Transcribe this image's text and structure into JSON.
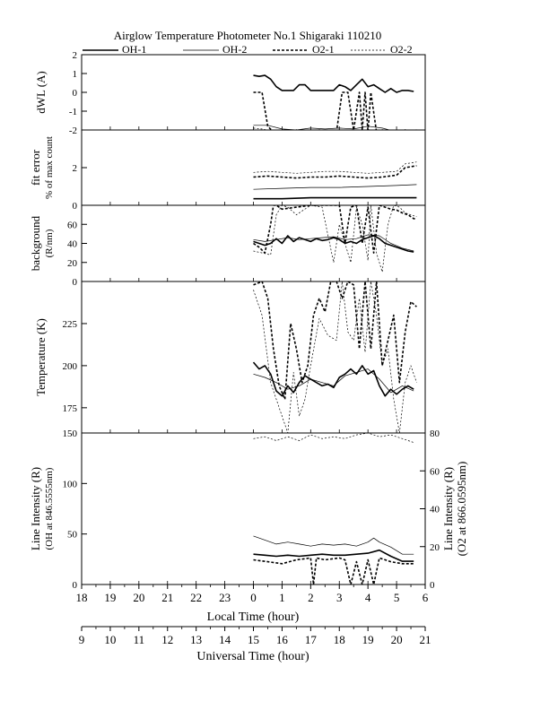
{
  "title": "Airglow Temperature Photometer No.1   Shigaraki   110210",
  "legend": [
    {
      "name": "OH-1",
      "style": "thick-solid"
    },
    {
      "name": "OH-2",
      "style": "thin-solid"
    },
    {
      "name": "O2-1",
      "style": "thick-dash"
    },
    {
      "name": "O2-2",
      "style": "thin-dash"
    }
  ],
  "x_axes": {
    "local": {
      "label": "Local Time (hour)",
      "ticks": [
        "18",
        "19",
        "20",
        "21",
        "22",
        "23",
        "0",
        "1",
        "2",
        "3",
        "4",
        "5",
        "6"
      ]
    },
    "universal": {
      "label": "Universal Time (hour)",
      "ticks": [
        "9",
        "10",
        "11",
        "12",
        "13",
        "14",
        "15",
        "16",
        "17",
        "18",
        "19",
        "20",
        "21"
      ]
    }
  },
  "chart_data": [
    {
      "type": "line",
      "id": "dwl",
      "ylabel": [
        "dWL (A)"
      ],
      "ylim": [
        -2,
        2
      ],
      "yticks": [
        -2,
        -1,
        0,
        1,
        2
      ],
      "xlim": [
        18,
        30
      ],
      "series": [
        {
          "name": "OH-1",
          "x": [
            24.0,
            24.2,
            24.4,
            24.6,
            24.8,
            25.0,
            25.2,
            25.4,
            25.6,
            25.8,
            26.0,
            26.2,
            26.4,
            26.6,
            26.8,
            27.0,
            27.2,
            27.4,
            27.6,
            27.8,
            28.0,
            28.2,
            28.4,
            28.6,
            28.8,
            29.0,
            29.2,
            29.4,
            29.6
          ],
          "y": [
            0.9,
            0.85,
            0.9,
            0.7,
            0.3,
            0.1,
            0.1,
            0.1,
            0.4,
            0.4,
            0.1,
            0.1,
            0.1,
            0.1,
            0.1,
            0.4,
            0.3,
            0.1,
            0.4,
            0.7,
            0.3,
            0.4,
            0.2,
            0.0,
            0.2,
            0.0,
            0.1,
            0.1,
            0.05
          ]
        },
        {
          "name": "OH-2",
          "x": [
            24.0,
            24.5,
            25.0,
            25.5,
            26.0,
            26.5,
            27.0,
            27.5,
            28.0,
            28.5,
            29.0,
            29.5,
            29.7
          ],
          "y": [
            -1.75,
            -1.75,
            -1.95,
            -2.0,
            -1.9,
            -1.95,
            -1.9,
            -1.95,
            -1.8,
            -1.9,
            -2.1,
            -2.0,
            -2.1
          ]
        },
        {
          "name": "O2-1",
          "x": [
            24.0,
            24.3,
            24.5,
            24.7,
            24.9,
            25.1,
            25.3,
            25.5,
            25.7,
            25.9,
            26.1,
            26.3,
            26.5,
            26.7,
            26.9,
            27.1,
            27.3,
            27.5,
            27.7,
            27.8,
            27.9,
            28.0,
            28.1,
            28.3,
            28.5,
            28.7,
            28.9,
            29.1,
            29.3,
            29.5,
            29.7
          ],
          "y": [
            0.0,
            0.0,
            -1.8,
            -2.1,
            -2.2,
            -2.0,
            -2.2,
            -2.0,
            -2.1,
            -2.0,
            -2.2,
            -2.0,
            -2.1,
            -2.0,
            -2.1,
            0.0,
            0.0,
            -2.0,
            0.0,
            -2.0,
            0.0,
            -2.1,
            0.0,
            -2.1,
            -2.0,
            -2.1,
            -2.0,
            -2.1,
            -2.0,
            -2.1,
            -2.0
          ]
        },
        {
          "name": "O2-2",
          "x": [
            24.0,
            24.3,
            24.6,
            24.9,
            25.2,
            25.5,
            25.8,
            26.1,
            26.4,
            26.7,
            27.0,
            27.3,
            27.6,
            27.9,
            28.2,
            28.5,
            28.8,
            29.1,
            29.4,
            29.7
          ],
          "y": [
            -1.9,
            -1.95,
            -2.05,
            -2.1,
            -2.0,
            -2.15,
            -2.05,
            -2.1,
            -2.0,
            -2.15,
            -2.05,
            -2.1,
            -2.0,
            -2.15,
            -2.05,
            -2.1,
            -2.0,
            -2.15,
            -2.1,
            -2.1
          ]
        }
      ]
    },
    {
      "type": "line",
      "id": "fit_error",
      "ylabel": [
        "fit error",
        "% of max count"
      ],
      "ylim": [
        0,
        4
      ],
      "yticks": [
        0,
        2
      ],
      "xlim": [
        18,
        30
      ],
      "series": [
        {
          "name": "OH-1",
          "x": [
            24.0,
            25.0,
            26.0,
            27.0,
            28.0,
            29.0,
            29.7
          ],
          "y": [
            0.35,
            0.35,
            0.4,
            0.4,
            0.4,
            0.4,
            0.4
          ]
        },
        {
          "name": "OH-2",
          "x": [
            24.0,
            25.0,
            26.0,
            27.0,
            28.0,
            29.0,
            29.7
          ],
          "y": [
            0.85,
            0.9,
            0.95,
            0.95,
            1.0,
            1.05,
            1.1
          ]
        },
        {
          "name": "O2-1",
          "x": [
            24.0,
            24.5,
            25.0,
            25.5,
            26.0,
            26.5,
            27.0,
            27.5,
            28.0,
            28.5,
            29.0,
            29.3,
            29.7
          ],
          "y": [
            1.5,
            1.55,
            1.5,
            1.45,
            1.5,
            1.5,
            1.55,
            1.5,
            1.45,
            1.5,
            1.6,
            2.0,
            2.1
          ]
        },
        {
          "name": "O2-2",
          "x": [
            24.0,
            24.5,
            25.0,
            25.5,
            26.0,
            26.5,
            27.0,
            27.5,
            28.0,
            28.5,
            29.0,
            29.3,
            29.7
          ],
          "y": [
            1.75,
            1.8,
            1.75,
            1.7,
            1.75,
            1.8,
            1.8,
            1.75,
            1.7,
            1.75,
            1.8,
            2.2,
            2.3
          ]
        }
      ]
    },
    {
      "type": "line",
      "id": "background",
      "ylabel": [
        "background",
        "(R/nm)"
      ],
      "ylim": [
        0,
        80
      ],
      "yticks": [
        0,
        20,
        40,
        60
      ],
      "xlim": [
        18,
        30
      ],
      "series": [
        {
          "name": "OH-1",
          "x": [
            24.0,
            24.2,
            24.4,
            24.6,
            24.8,
            25.0,
            25.2,
            25.4,
            25.6,
            25.8,
            26.0,
            26.2,
            26.4,
            26.6,
            26.8,
            27.0,
            27.2,
            27.4,
            27.6,
            27.8,
            28.0,
            28.2,
            28.4,
            28.6,
            28.8,
            29.0,
            29.2,
            29.4,
            29.6
          ],
          "y": [
            42,
            40,
            38,
            40,
            45,
            40,
            48,
            42,
            46,
            44,
            42,
            45,
            43,
            44,
            46,
            44,
            40,
            42,
            40,
            44,
            46,
            48,
            45,
            40,
            38,
            36,
            34,
            32,
            31
          ]
        },
        {
          "name": "OH-2",
          "x": [
            24.0,
            24.4,
            24.8,
            25.2,
            25.6,
            26.0,
            26.4,
            26.8,
            27.2,
            27.6,
            28.0,
            28.4,
            28.8,
            29.2,
            29.6
          ],
          "y": [
            44,
            42,
            44,
            46,
            44,
            45,
            46,
            47,
            44,
            45,
            49,
            48,
            40,
            35,
            32
          ]
        },
        {
          "name": "O2-1",
          "x": [
            24.0,
            24.2,
            24.4,
            24.6,
            24.7,
            24.8,
            25.0,
            25.5,
            26.0,
            26.5,
            27.0,
            27.2,
            27.4,
            27.6,
            27.8,
            28.0,
            28.2,
            28.4,
            28.6,
            28.8,
            29.0,
            29.2,
            29.4,
            29.6,
            29.7
          ],
          "y": [
            40,
            36,
            30,
            60,
            80,
            80,
            76,
            78,
            80,
            80,
            80,
            40,
            78,
            80,
            40,
            78,
            30,
            80,
            78,
            76,
            75,
            72,
            70,
            66,
            66
          ]
        },
        {
          "name": "O2-2",
          "x": [
            24.0,
            24.3,
            24.6,
            24.8,
            25.0,
            25.2,
            25.5,
            26.0,
            26.4,
            26.8,
            27.0,
            27.2,
            27.4,
            27.6,
            27.8,
            28.0,
            28.1,
            28.3,
            28.5,
            28.7,
            28.9,
            29.1,
            29.3,
            29.5,
            29.7
          ],
          "y": [
            32,
            30,
            28,
            70,
            80,
            78,
            70,
            80,
            78,
            20,
            60,
            40,
            20,
            78,
            60,
            22,
            80,
            30,
            10,
            60,
            80,
            78,
            72,
            70,
            68
          ]
        }
      ]
    },
    {
      "type": "line",
      "id": "temperature",
      "ylabel": [
        "Temperature (K)"
      ],
      "ylim": [
        160,
        250
      ],
      "yticks": [
        175,
        200,
        225
      ],
      "xlim": [
        18,
        30
      ],
      "series": [
        {
          "name": "OH-1",
          "x": [
            24.0,
            24.2,
            24.4,
            24.6,
            24.8,
            25.0,
            25.2,
            25.4,
            25.6,
            25.8,
            26.0,
            26.2,
            26.4,
            26.6,
            26.8,
            27.0,
            27.2,
            27.4,
            27.6,
            27.8,
            28.0,
            28.2,
            28.4,
            28.6,
            28.8,
            29.0,
            29.2,
            29.4,
            29.6
          ],
          "y": [
            202,
            198,
            200,
            195,
            185,
            182,
            188,
            184,
            190,
            194,
            192,
            190,
            188,
            189,
            187,
            193,
            195,
            198,
            195,
            200,
            195,
            197,
            188,
            182,
            186,
            183,
            186,
            188,
            186
          ]
        },
        {
          "name": "OH-2",
          "x": [
            24.0,
            24.4,
            24.8,
            25.2,
            25.6,
            26.0,
            26.4,
            26.8,
            27.2,
            27.6,
            28.0,
            28.4,
            28.8,
            29.2,
            29.6
          ],
          "y": [
            195,
            193,
            190,
            186,
            188,
            192,
            190,
            188,
            194,
            196,
            198,
            192,
            184,
            188,
            185
          ]
        },
        {
          "name": "O2-1",
          "x": [
            24.0,
            24.3,
            24.5,
            24.7,
            24.9,
            25.1,
            25.3,
            25.5,
            25.7,
            25.9,
            26.1,
            26.3,
            26.5,
            26.7,
            26.9,
            27.1,
            27.3,
            27.5,
            27.7,
            27.9,
            28.1,
            28.3,
            28.5,
            28.7,
            28.9,
            29.1,
            29.3,
            29.5,
            29.7
          ],
          "y": [
            248,
            250,
            240,
            210,
            188,
            180,
            225,
            210,
            190,
            200,
            230,
            240,
            232,
            250,
            250,
            240,
            250,
            248,
            210,
            250,
            210,
            250,
            200,
            215,
            230,
            190,
            220,
            238,
            235
          ]
        },
        {
          "name": "O2-2",
          "x": [
            24.0,
            24.3,
            24.6,
            24.9,
            25.2,
            25.4,
            25.6,
            25.8,
            26.0,
            26.3,
            26.6,
            26.9,
            27.1,
            27.3,
            27.5,
            27.7,
            27.9,
            28.1,
            28.3,
            28.5,
            28.7,
            28.9,
            29.1,
            29.3,
            29.5,
            29.7
          ],
          "y": [
            245,
            230,
            190,
            175,
            160,
            196,
            170,
            180,
            200,
            228,
            218,
            215,
            250,
            220,
            215,
            240,
            208,
            250,
            230,
            200,
            210,
            180,
            160,
            190,
            200,
            190
          ]
        }
      ]
    },
    {
      "type": "line",
      "id": "line_intensity",
      "ylabel": [
        "Line Intensity (R)",
        "(OH at 846.5555nm)"
      ],
      "ylim": [
        0,
        150
      ],
      "yticks": [
        0,
        50,
        100,
        150
      ],
      "y2label": [
        "Line Intensity (R)",
        "(O2 at 866.0595nm)"
      ],
      "y2lim": [
        0,
        80
      ],
      "y2ticks": [
        0,
        20,
        40,
        60,
        80
      ],
      "xlim": [
        18,
        30
      ],
      "series": [
        {
          "name": "OH-1",
          "axis": "left",
          "x": [
            24.0,
            24.4,
            24.8,
            25.2,
            25.6,
            26.0,
            26.4,
            26.8,
            27.2,
            27.6,
            28.0,
            28.4,
            28.8,
            29.2,
            29.6
          ],
          "y": [
            30,
            29,
            28,
            29,
            28,
            29,
            30,
            29,
            29,
            30,
            31,
            34,
            28,
            23,
            23
          ]
        },
        {
          "name": "OH-2",
          "axis": "left",
          "x": [
            24.0,
            24.4,
            24.8,
            25.2,
            25.6,
            26.0,
            26.4,
            26.8,
            27.2,
            27.6,
            28.0,
            28.2,
            28.4,
            28.8,
            29.2,
            29.6
          ],
          "y": [
            48,
            44,
            40,
            42,
            40,
            38,
            40,
            39,
            40,
            38,
            42,
            46,
            42,
            37,
            30,
            30
          ]
        },
        {
          "name": "O2-1",
          "axis": "right",
          "x": [
            24.0,
            24.5,
            25.0,
            25.5,
            26.0,
            26.1,
            26.2,
            26.5,
            27.0,
            27.2,
            27.4,
            27.6,
            27.8,
            28.0,
            28.2,
            28.4,
            28.8,
            29.2,
            29.6
          ],
          "y": [
            13,
            12,
            11,
            13,
            14,
            0,
            14,
            13,
            14,
            13,
            0,
            12,
            0,
            13,
            0,
            14,
            12,
            11,
            11
          ]
        },
        {
          "name": "O2-2",
          "axis": "right",
          "x": [
            24.0,
            24.4,
            24.8,
            25.2,
            25.6,
            26.0,
            26.4,
            26.8,
            27.2,
            27.6,
            28.0,
            28.4,
            28.8,
            29.2,
            29.6
          ],
          "y": [
            77,
            78,
            76,
            78,
            76,
            79,
            77,
            78,
            77,
            79,
            80,
            78,
            79,
            77,
            75
          ]
        }
      ]
    }
  ]
}
